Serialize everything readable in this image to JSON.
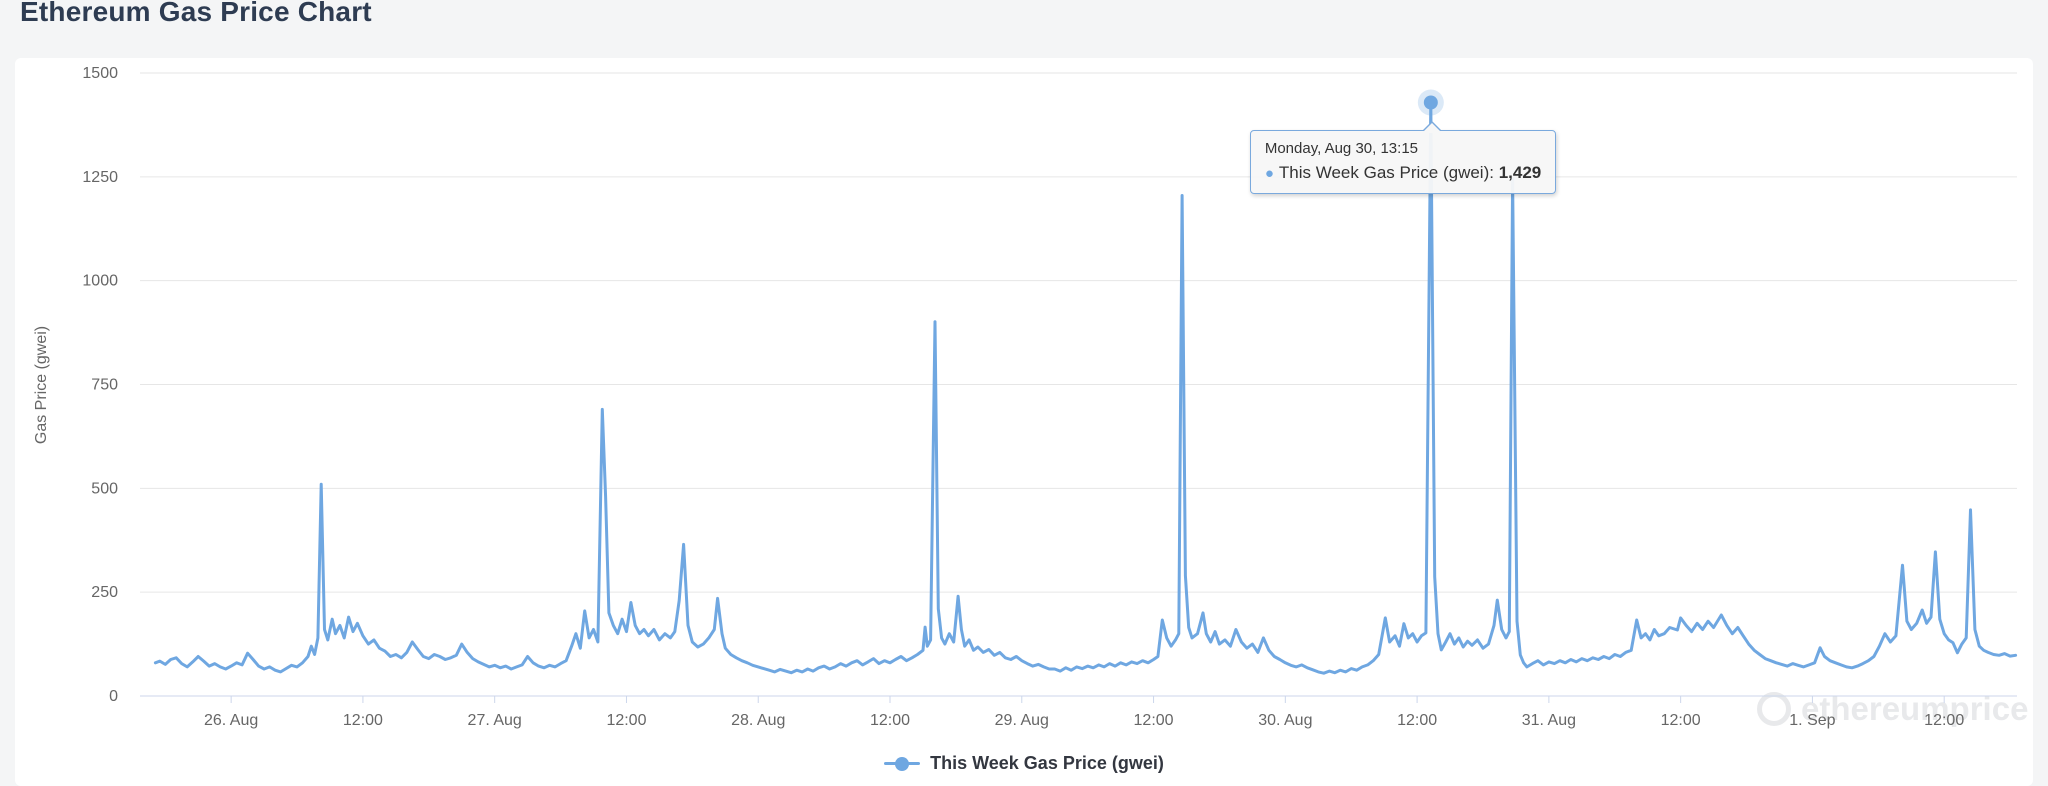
{
  "page": {
    "title": "Ethereum Gas Price Chart"
  },
  "chart": {
    "y_axis": {
      "title": "Gas Price (gwei)",
      "ticks": [
        0,
        250,
        500,
        750,
        1000,
        1250,
        1500
      ]
    },
    "legend": {
      "label": "This Week Gas Price (gwei)"
    },
    "tooltip": {
      "title": "Monday, Aug 30, 13:15",
      "bullet": "●",
      "series_label": "This Week Gas Price (gwei):",
      "value": "1,429"
    },
    "watermark": "ethereumprice",
    "colors": {
      "series": "#6fa7e1",
      "grid": "#e6e6e6",
      "axis": "#ccd6eb",
      "label": "#666666",
      "title": "#2e3c52",
      "tooltip_bg": "#f7f7f7"
    }
  },
  "chart_data": {
    "type": "line",
    "title": "Ethereum Gas Price Chart",
    "series_name": "This Week Gas Price (gwei)",
    "xlabel": "",
    "ylabel": "Gas Price (gwei)",
    "x_unit": "hours since Aug 26 00:00",
    "ylim": [
      0,
      1500
    ],
    "xlim": [
      -8.3,
      162.63
    ],
    "grid": "horizontal",
    "legend_position": "bottom-center",
    "x_tick_hours": [
      0,
      12,
      24,
      36,
      48,
      60,
      72,
      84,
      96,
      108,
      120,
      132,
      144,
      156
    ],
    "x_tick_labels": [
      "26. Aug",
      "12:00",
      "27. Aug",
      "12:00",
      "28. Aug",
      "12:00",
      "29. Aug",
      "12:00",
      "30. Aug",
      "12:00",
      "31. Aug",
      "12:00",
      "1. Sep",
      "12:00"
    ],
    "highlight_point": {
      "x": 109.25,
      "y": 1429,
      "time_label": "Monday, Aug 30, 13:15"
    },
    "points": [
      [
        -6.9,
        80
      ],
      [
        -6.5,
        84
      ],
      [
        -6,
        76
      ],
      [
        -5.5,
        88
      ],
      [
        -5,
        92
      ],
      [
        -4.5,
        78
      ],
      [
        -4,
        70
      ],
      [
        -3.5,
        82
      ],
      [
        -3,
        95
      ],
      [
        -2.5,
        84
      ],
      [
        -2,
        72
      ],
      [
        -1.5,
        78
      ],
      [
        -1,
        70
      ],
      [
        -0.5,
        65
      ],
      [
        0,
        72
      ],
      [
        0.5,
        80
      ],
      [
        1,
        75
      ],
      [
        1.5,
        103
      ],
      [
        2,
        88
      ],
      [
        2.5,
        72
      ],
      [
        3,
        65
      ],
      [
        3.5,
        70
      ],
      [
        4,
        62
      ],
      [
        4.5,
        58
      ],
      [
        5,
        66
      ],
      [
        5.5,
        74
      ],
      [
        6,
        70
      ],
      [
        6.5,
        80
      ],
      [
        7,
        95
      ],
      [
        7.3,
        120
      ],
      [
        7.6,
        100
      ],
      [
        7.9,
        140
      ],
      [
        8.2,
        510
      ],
      [
        8.5,
        160
      ],
      [
        8.8,
        135
      ],
      [
        9.2,
        185
      ],
      [
        9.5,
        150
      ],
      [
        9.9,
        170
      ],
      [
        10.3,
        140
      ],
      [
        10.7,
        190
      ],
      [
        11.1,
        155
      ],
      [
        11.5,
        175
      ],
      [
        12,
        145
      ],
      [
        12.5,
        125
      ],
      [
        13,
        135
      ],
      [
        13.5,
        115
      ],
      [
        14,
        108
      ],
      [
        14.5,
        95
      ],
      [
        15,
        100
      ],
      [
        15.5,
        92
      ],
      [
        16,
        105
      ],
      [
        16.5,
        130
      ],
      [
        17,
        112
      ],
      [
        17.5,
        95
      ],
      [
        18,
        90
      ],
      [
        18.5,
        100
      ],
      [
        19,
        95
      ],
      [
        19.5,
        88
      ],
      [
        20,
        92
      ],
      [
        20.5,
        98
      ],
      [
        21,
        125
      ],
      [
        21.5,
        105
      ],
      [
        22,
        90
      ],
      [
        22.5,
        82
      ],
      [
        23,
        76
      ],
      [
        23.5,
        70
      ],
      [
        24,
        74
      ],
      [
        24.5,
        68
      ],
      [
        25,
        72
      ],
      [
        25.5,
        65
      ],
      [
        26,
        70
      ],
      [
        26.5,
        75
      ],
      [
        27,
        95
      ],
      [
        27.5,
        80
      ],
      [
        28,
        72
      ],
      [
        28.5,
        68
      ],
      [
        29,
        74
      ],
      [
        29.5,
        70
      ],
      [
        30,
        78
      ],
      [
        30.5,
        85
      ],
      [
        31,
        120
      ],
      [
        31.4,
        150
      ],
      [
        31.8,
        115
      ],
      [
        32.2,
        205
      ],
      [
        32.6,
        140
      ],
      [
        33,
        160
      ],
      [
        33.4,
        130
      ],
      [
        33.8,
        690
      ],
      [
        34.1,
        480
      ],
      [
        34.4,
        200
      ],
      [
        34.8,
        170
      ],
      [
        35.2,
        150
      ],
      [
        35.6,
        185
      ],
      [
        36,
        155
      ],
      [
        36.4,
        225
      ],
      [
        36.8,
        170
      ],
      [
        37.2,
        150
      ],
      [
        37.6,
        160
      ],
      [
        38,
        145
      ],
      [
        38.5,
        160
      ],
      [
        39,
        135
      ],
      [
        39.5,
        150
      ],
      [
        40,
        140
      ],
      [
        40.4,
        155
      ],
      [
        40.8,
        230
      ],
      [
        41.2,
        365
      ],
      [
        41.6,
        170
      ],
      [
        42,
        130
      ],
      [
        42.5,
        118
      ],
      [
        43,
        125
      ],
      [
        43.5,
        140
      ],
      [
        44,
        160
      ],
      [
        44.3,
        235
      ],
      [
        44.7,
        150
      ],
      [
        45,
        115
      ],
      [
        45.5,
        100
      ],
      [
        46,
        92
      ],
      [
        46.5,
        85
      ],
      [
        47,
        80
      ],
      [
        47.5,
        74
      ],
      [
        48,
        70
      ],
      [
        48.5,
        66
      ],
      [
        49,
        62
      ],
      [
        49.5,
        58
      ],
      [
        50,
        64
      ],
      [
        50.5,
        60
      ],
      [
        51,
        56
      ],
      [
        51.5,
        62
      ],
      [
        52,
        58
      ],
      [
        52.5,
        65
      ],
      [
        53,
        60
      ],
      [
        53.5,
        68
      ],
      [
        54,
        72
      ],
      [
        54.5,
        65
      ],
      [
        55,
        70
      ],
      [
        55.5,
        78
      ],
      [
        56,
        72
      ],
      [
        56.5,
        80
      ],
      [
        57,
        85
      ],
      [
        57.5,
        75
      ],
      [
        58,
        82
      ],
      [
        58.5,
        90
      ],
      [
        59,
        78
      ],
      [
        59.5,
        85
      ],
      [
        60,
        80
      ],
      [
        60.5,
        88
      ],
      [
        61,
        95
      ],
      [
        61.5,
        85
      ],
      [
        62,
        92
      ],
      [
        62.5,
        100
      ],
      [
        63,
        110
      ],
      [
        63.2,
        166
      ],
      [
        63.4,
        120
      ],
      [
        63.7,
        135
      ],
      [
        64.1,
        901
      ],
      [
        64.4,
        210
      ],
      [
        64.7,
        140
      ],
      [
        65,
        125
      ],
      [
        65.4,
        150
      ],
      [
        65.8,
        130
      ],
      [
        66.2,
        240
      ],
      [
        66.5,
        160
      ],
      [
        66.8,
        120
      ],
      [
        67.2,
        135
      ],
      [
        67.6,
        110
      ],
      [
        68,
        118
      ],
      [
        68.5,
        105
      ],
      [
        69,
        112
      ],
      [
        69.5,
        98
      ],
      [
        70,
        105
      ],
      [
        70.5,
        92
      ],
      [
        71,
        88
      ],
      [
        71.5,
        95
      ],
      [
        72,
        85
      ],
      [
        72.5,
        78
      ],
      [
        73,
        72
      ],
      [
        73.5,
        76
      ],
      [
        74,
        70
      ],
      [
        74.5,
        65
      ],
      [
        75,
        65
      ],
      [
        75.5,
        60
      ],
      [
        76,
        68
      ],
      [
        76.5,
        62
      ],
      [
        77,
        70
      ],
      [
        77.5,
        66
      ],
      [
        78,
        72
      ],
      [
        78.5,
        68
      ],
      [
        79,
        75
      ],
      [
        79.5,
        70
      ],
      [
        80,
        78
      ],
      [
        80.5,
        72
      ],
      [
        81,
        80
      ],
      [
        81.5,
        75
      ],
      [
        82,
        82
      ],
      [
        82.5,
        78
      ],
      [
        83,
        85
      ],
      [
        83.5,
        80
      ],
      [
        84,
        88
      ],
      [
        84.4,
        95
      ],
      [
        84.8,
        183
      ],
      [
        85.2,
        140
      ],
      [
        85.6,
        120
      ],
      [
        86,
        135
      ],
      [
        86.3,
        150
      ],
      [
        86.6,
        1205
      ],
      [
        86.9,
        290
      ],
      [
        87.2,
        165
      ],
      [
        87.5,
        140
      ],
      [
        88,
        150
      ],
      [
        88.5,
        200
      ],
      [
        88.8,
        150
      ],
      [
        89.2,
        130
      ],
      [
        89.6,
        155
      ],
      [
        90,
        125
      ],
      [
        90.5,
        135
      ],
      [
        91,
        120
      ],
      [
        91.5,
        160
      ],
      [
        92,
        130
      ],
      [
        92.5,
        115
      ],
      [
        93,
        125
      ],
      [
        93.5,
        105
      ],
      [
        94,
        140
      ],
      [
        94.5,
        110
      ],
      [
        95,
        95
      ],
      [
        95.5,
        88
      ],
      [
        96,
        80
      ],
      [
        96.5,
        74
      ],
      [
        97,
        70
      ],
      [
        97.5,
        75
      ],
      [
        98,
        68
      ],
      [
        98.5,
        63
      ],
      [
        99,
        58
      ],
      [
        99.5,
        55
      ],
      [
        100,
        60
      ],
      [
        100.5,
        56
      ],
      [
        101,
        62
      ],
      [
        101.5,
        58
      ],
      [
        102,
        66
      ],
      [
        102.5,
        62
      ],
      [
        103,
        70
      ],
      [
        103.5,
        75
      ],
      [
        104,
        85
      ],
      [
        104.5,
        100
      ],
      [
        105.1,
        188
      ],
      [
        105.5,
        130
      ],
      [
        106,
        145
      ],
      [
        106.4,
        120
      ],
      [
        106.8,
        174
      ],
      [
        107.2,
        140
      ],
      [
        107.6,
        150
      ],
      [
        108,
        130
      ],
      [
        108.4,
        145
      ],
      [
        108.8,
        152
      ],
      [
        109.25,
        1429
      ],
      [
        109.6,
        287
      ],
      [
        109.9,
        150
      ],
      [
        110.2,
        111
      ],
      [
        110.6,
        130
      ],
      [
        111,
        150
      ],
      [
        111.4,
        125
      ],
      [
        111.8,
        140
      ],
      [
        112.2,
        118
      ],
      [
        112.6,
        132
      ],
      [
        113,
        122
      ],
      [
        113.5,
        135
      ],
      [
        114,
        115
      ],
      [
        114.5,
        125
      ],
      [
        115,
        170
      ],
      [
        115.3,
        231
      ],
      [
        115.7,
        160
      ],
      [
        116.1,
        140
      ],
      [
        116.4,
        155
      ],
      [
        116.7,
        1245
      ],
      [
        117.1,
        180
      ],
      [
        117.4,
        99
      ],
      [
        117.7,
        80
      ],
      [
        118,
        70
      ],
      [
        118.5,
        78
      ],
      [
        119,
        85
      ],
      [
        119.5,
        75
      ],
      [
        120,
        82
      ],
      [
        120.5,
        78
      ],
      [
        121,
        85
      ],
      [
        121.5,
        80
      ],
      [
        122,
        88
      ],
      [
        122.5,
        82
      ],
      [
        123,
        90
      ],
      [
        123.5,
        85
      ],
      [
        124,
        92
      ],
      [
        124.5,
        88
      ],
      [
        125,
        95
      ],
      [
        125.5,
        90
      ],
      [
        126,
        100
      ],
      [
        126.5,
        95
      ],
      [
        127,
        105
      ],
      [
        127.5,
        110
      ],
      [
        128,
        183
      ],
      [
        128.4,
        140
      ],
      [
        128.8,
        150
      ],
      [
        129.2,
        135
      ],
      [
        129.6,
        160
      ],
      [
        130,
        145
      ],
      [
        130.5,
        150
      ],
      [
        131,
        165
      ],
      [
        131.7,
        159
      ],
      [
        132,
        188
      ],
      [
        132.5,
        170
      ],
      [
        133,
        155
      ],
      [
        133.5,
        175
      ],
      [
        134,
        160
      ],
      [
        134.5,
        180
      ],
      [
        135,
        165
      ],
      [
        135.7,
        195
      ],
      [
        136.2,
        170
      ],
      [
        136.7,
        150
      ],
      [
        137.2,
        165
      ],
      [
        137.7,
        145
      ],
      [
        138.2,
        125
      ],
      [
        138.7,
        110
      ],
      [
        139.2,
        100
      ],
      [
        139.7,
        90
      ],
      [
        140.2,
        85
      ],
      [
        140.7,
        80
      ],
      [
        141.2,
        76
      ],
      [
        141.7,
        72
      ],
      [
        142.2,
        78
      ],
      [
        142.7,
        74
      ],
      [
        143.2,
        70
      ],
      [
        143.7,
        75
      ],
      [
        144.2,
        80
      ],
      [
        144.7,
        116
      ],
      [
        145.1,
        95
      ],
      [
        145.6,
        85
      ],
      [
        146.1,
        80
      ],
      [
        146.6,
        75
      ],
      [
        147.1,
        70
      ],
      [
        147.6,
        68
      ],
      [
        148.1,
        72
      ],
      [
        148.6,
        78
      ],
      [
        149.1,
        85
      ],
      [
        149.6,
        95
      ],
      [
        150.1,
        120
      ],
      [
        150.6,
        150
      ],
      [
        151.1,
        130
      ],
      [
        151.6,
        145
      ],
      [
        152.2,
        315
      ],
      [
        152.6,
        180
      ],
      [
        153,
        160
      ],
      [
        153.5,
        175
      ],
      [
        154,
        207
      ],
      [
        154.4,
        175
      ],
      [
        154.8,
        190
      ],
      [
        155.2,
        347
      ],
      [
        155.6,
        185
      ],
      [
        156,
        150
      ],
      [
        156.4,
        135
      ],
      [
        156.8,
        128
      ],
      [
        157.2,
        104
      ],
      [
        157.6,
        125
      ],
      [
        158,
        140
      ],
      [
        158.4,
        448
      ],
      [
        158.8,
        160
      ],
      [
        159.2,
        120
      ],
      [
        159.6,
        110
      ],
      [
        160,
        105
      ],
      [
        160.5,
        100
      ],
      [
        161,
        98
      ],
      [
        161.5,
        102
      ],
      [
        162,
        96
      ],
      [
        162.5,
        98
      ]
    ]
  }
}
